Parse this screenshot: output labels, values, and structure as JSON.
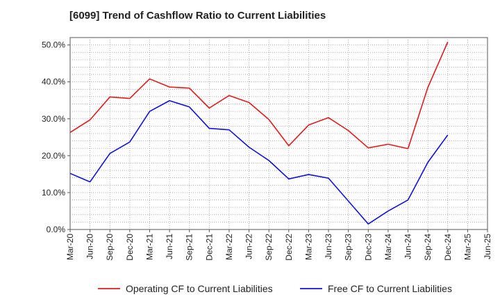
{
  "chart_data": {
    "type": "line",
    "title": "[6099]  Trend of Cashflow Ratio to Current Liabilities",
    "xlabel": "",
    "ylabel": "",
    "categories": [
      "Mar-20",
      "Jun-20",
      "Sep-20",
      "Dec-20",
      "Mar-21",
      "Jun-21",
      "Sep-21",
      "Dec-21",
      "Mar-22",
      "Jun-22",
      "Sep-22",
      "Dec-22",
      "Mar-23",
      "Jun-23",
      "Sep-23",
      "Dec-23",
      "Mar-24",
      "Jun-24",
      "Sep-24",
      "Dec-24",
      "Mar-25",
      "Jun-25"
    ],
    "y_tick_labels": [
      "0.0%",
      "10.0%",
      "20.0%",
      "30.0%",
      "40.0%",
      "50.0%"
    ],
    "ylim": [
      0,
      52
    ],
    "y_unit": "%",
    "grid": true,
    "legend_position": "bottom",
    "series": [
      {
        "name": "Operating CF to Current Liabilities",
        "color": "#e31a1c",
        "values": [
          26.3,
          29.7,
          35.9,
          35.5,
          40.8,
          38.6,
          38.3,
          32.9,
          36.3,
          34.4,
          29.8,
          22.7,
          28.3,
          30.3,
          26.8,
          22.1,
          23.1,
          21.9,
          38.5,
          50.8,
          null,
          null
        ]
      },
      {
        "name": "Free CF to Current Liabilities",
        "color": "#1010e0",
        "values": [
          15.2,
          12.9,
          20.6,
          23.7,
          32.0,
          34.9,
          33.2,
          27.4,
          27.0,
          22.3,
          18.7,
          13.7,
          14.9,
          13.9,
          7.7,
          1.5,
          5.0,
          8.0,
          18.2,
          25.6,
          null,
          null
        ]
      }
    ]
  }
}
